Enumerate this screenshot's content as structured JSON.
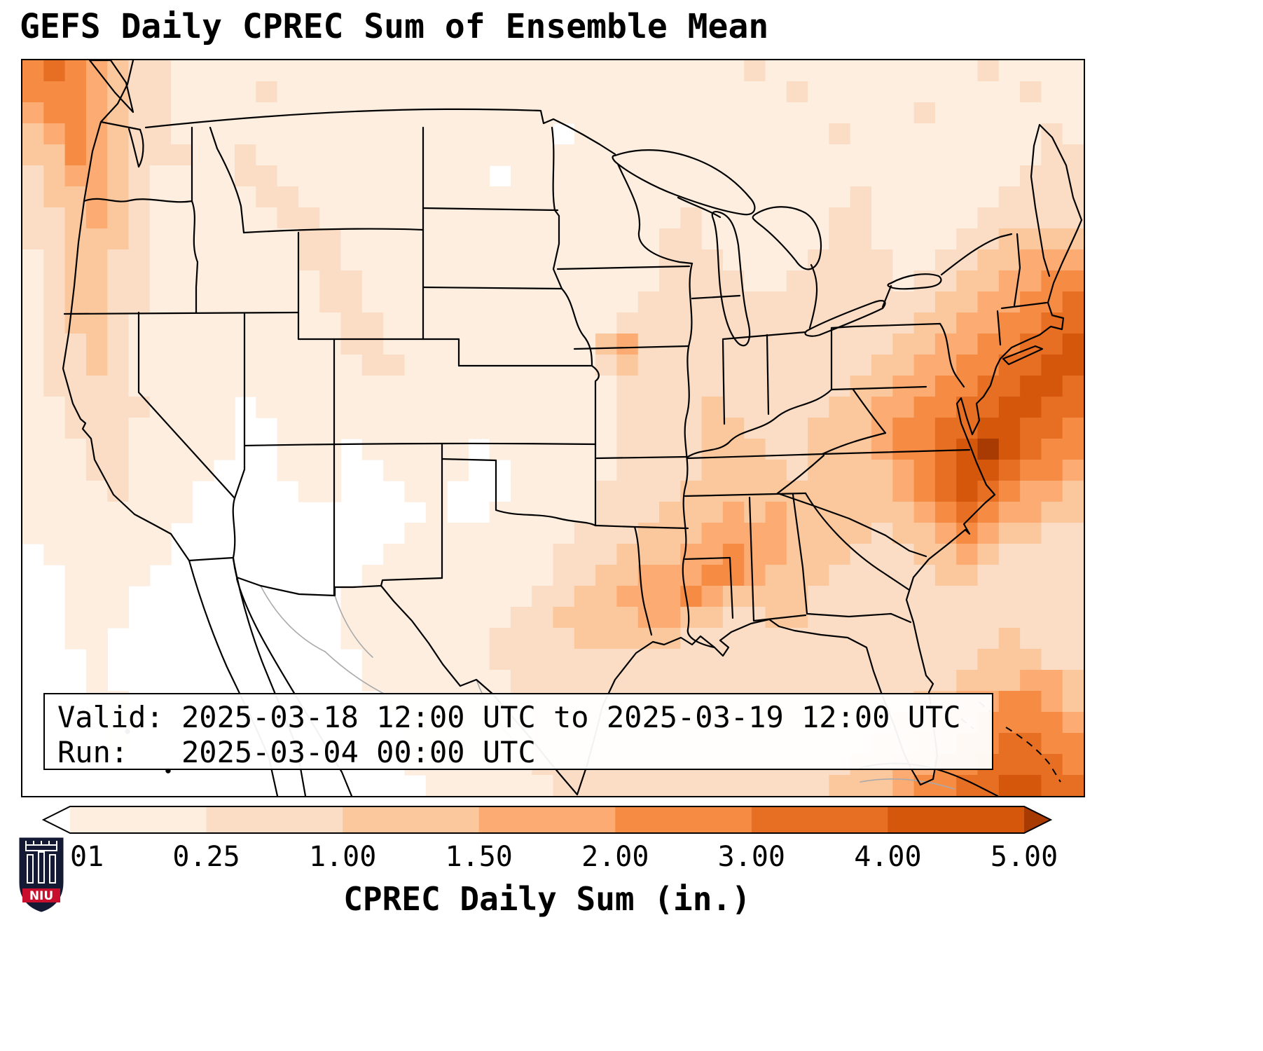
{
  "title": "GEFS Daily CPREC Sum of Ensemble Mean",
  "info_box": {
    "valid_line": "Valid: 2025-03-18 12:00 UTC to 2025-03-19 12:00 UTC",
    "run_line": "Run:   2025-03-04 00:00 UTC"
  },
  "colorbar": {
    "label": "CPREC Daily Sum (in.)",
    "tick_labels": [
      "0.01",
      "0.25",
      "1.00",
      "1.50",
      "2.00",
      "3.00",
      "4.00",
      "5.00"
    ],
    "segment_colors": [
      "#fdeee0",
      "#fbdcc4",
      "#fbc89e",
      "#fcab72",
      "#f68b44",
      "#e76f23",
      "#d4570b"
    ],
    "under_color": "#ffffff",
    "over_color": "#a83a03"
  },
  "logo": {
    "text": "NIU"
  },
  "chart_data": {
    "type": "heatmap",
    "title": "GEFS Daily CPREC Sum of Ensemble Mean",
    "units": "in.",
    "valid": "2025-03-18 12:00 UTC to 2025-03-19 12:00 UTC",
    "run": "2025-03-04 00:00 UTC",
    "variable": "CPREC Daily Sum",
    "levels_in": [
      0.01,
      0.25,
      1.0,
      1.5,
      2.0,
      3.0,
      4.0,
      5.0
    ],
    "level_colors": [
      "#ffffff",
      "#fdeee0",
      "#fbdcc4",
      "#fbc89e",
      "#fcab72",
      "#f68b44",
      "#e76f23",
      "#d4570b",
      "#a83a03"
    ],
    "legend": "grid cells hold an index 0-8 into level_colors; bins are <0.01, 0.01-0.25, 0.25-1, 1-1.5, 1.5-2, 2-3, 3-4, 4-5, >5 inches",
    "grid": {
      "cols": 50,
      "rows": 35,
      "cells": [
        "56543221111111111111111111111111112111111111121111",
        "55543221111211111111111111111111111121111111111211",
        "45543221111111111111111111111111111111111121111111",
        "34543221111111111111111110111111111111211111111121",
        "33543222112111111111111111111111111111111111111122",
        "23443211112211111111110111111111111111111111111222",
        "23343211111221111111111111111111111111121111112222",
        "22343211111122111111111111111112111111221111122222",
        "22333211111112211111111111111122111111221111223333",
        "12332211111112211111111111111122211112222112233444",
        "12332211111111221111111111111122221122222122334455",
        "12332211111111221111111111111222222222222223344556",
        "12332111111111122111111111112222222222222233445566",
        "12232111111111122111111111134222222222222334455667",
        "12232111111111112211111111123222222222223344556677",
        "12222111111111111111111111112222222222233445566776",
        "11222211110111111111111111112222322222334455667766",
        "11222111110011111111111111112222332223334556677665",
        "11122111110011101111101111112222333223334556787655",
        "11122111100011100111100111112222333323333456776554",
        "11112111000001100011000111122223333333333456765443",
        "11111111000000000001001111122233343433333345654433",
        "11111110000000000011111111222333444433332334543322",
        "01111110000000000111111112223334454433322233432222",
        "00111100000000001111111112233444554333222223322222",
        "00111000000000011111111122334445433332222222222222",
        "00111000000000011111111223333443322332222222222222",
        "00110000000000011111112222333332222222222222223222",
        "00010000000000001111112222222222222222222222233322",
        "00010000000000001111111222222222222222222222333443",
        "00011000000000000111111222222222222222222233445543",
        "00001000000000000011111122222222222222222334455554",
        "00001000000000000011111122222222222222223344556655",
        "00000000000000000011111122222222222222233445566665",
        "00000000000000000001111112222222222222333455667766"
      ]
    }
  }
}
